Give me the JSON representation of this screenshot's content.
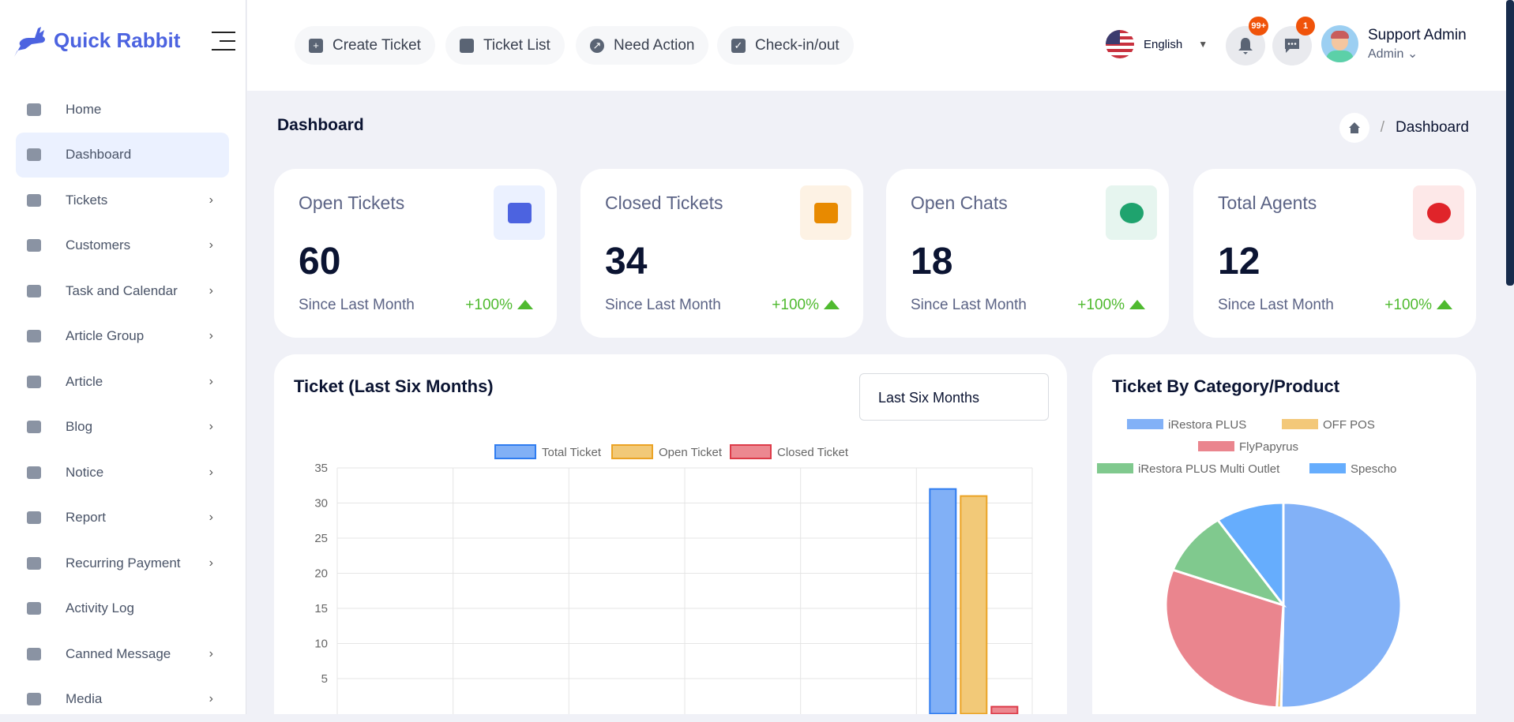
{
  "brand": {
    "name": "Quick Rabbit",
    "color": "#4c63e0"
  },
  "sidebar": {
    "items": [
      {
        "label": "Home",
        "icon": "home-icon",
        "chevron": false,
        "active": false
      },
      {
        "label": "Dashboard",
        "icon": "dashboard-icon",
        "chevron": false,
        "active": true
      },
      {
        "label": "Tickets",
        "icon": "ticket-icon",
        "chevron": true
      },
      {
        "label": "Customers",
        "icon": "user-icon",
        "chevron": true
      },
      {
        "label": "Task and Calendar",
        "icon": "calendar-icon",
        "chevron": true
      },
      {
        "label": "Article Group",
        "icon": "document-icon",
        "chevron": true
      },
      {
        "label": "Article",
        "icon": "bookmark-icon",
        "chevron": true
      },
      {
        "label": "Blog",
        "icon": "list-icon",
        "chevron": true
      },
      {
        "label": "Notice",
        "icon": "bell-icon",
        "chevron": true
      },
      {
        "label": "Report",
        "icon": "report-icon",
        "chevron": true
      },
      {
        "label": "Recurring Payment",
        "icon": "card-icon",
        "chevron": true
      },
      {
        "label": "Activity Log",
        "icon": "trend-icon",
        "chevron": false
      },
      {
        "label": "Canned Message",
        "icon": "message-icon",
        "chevron": true
      },
      {
        "label": "Media",
        "icon": "image-icon",
        "chevron": true
      }
    ]
  },
  "toolbar": {
    "create_ticket": "Create Ticket",
    "ticket_list": "Ticket List",
    "need_action": "Need Action",
    "check_in_out": "Check-in/out"
  },
  "header": {
    "language": "English",
    "notifications_badge": "99+",
    "messages_badge": "1",
    "user_name": "Support Admin",
    "user_role": "Admin"
  },
  "page": {
    "title": "Dashboard",
    "breadcrumb": "Dashboard"
  },
  "stats": [
    {
      "label": "Open Tickets",
      "value": "60",
      "since": "Since Last Month",
      "change": "+100%",
      "icon": "ticket-icon",
      "color": "#4c63e0",
      "bg": "#ebf1ff"
    },
    {
      "label": "Closed Tickets",
      "value": "34",
      "since": "Since Last Month",
      "change": "+100%",
      "icon": "ticket-cancel-icon",
      "color": "#e88a00",
      "bg": "#fdf2e4"
    },
    {
      "label": "Open Chats",
      "value": "18",
      "since": "Since Last Month",
      "change": "+100%",
      "icon": "chat-icon",
      "color": "#1fa36e",
      "bg": "#e6f5ef"
    },
    {
      "label": "Total Agents",
      "value": "12",
      "since": "Since Last Month",
      "change": "+100%",
      "icon": "user-icon",
      "color": "#e0242a",
      "bg": "#fde8e8"
    }
  ],
  "chart_data": [
    {
      "type": "bar",
      "title": "Ticket (Last Six Months)",
      "filter": "Last Six Months",
      "categories": [
        "",
        "",
        "",
        "",
        "",
        ""
      ],
      "yticks": [
        "35",
        "30",
        "25",
        "20",
        "15",
        "10",
        "5"
      ],
      "ylim": [
        0,
        35
      ],
      "grid": true,
      "legend": "top",
      "series": [
        {
          "name": "Total Ticket",
          "values": [
            0,
            0,
            0,
            0,
            0,
            32
          ],
          "fill": "#81b0f6",
          "stroke": "#2f7cf0"
        },
        {
          "name": "Open Ticket",
          "values": [
            0,
            0,
            0,
            0,
            0,
            31
          ],
          "fill": "#f2c978",
          "stroke": "#eba325"
        },
        {
          "name": "Closed Ticket",
          "values": [
            0,
            0,
            0,
            0,
            0,
            1
          ],
          "fill": "#ec8890",
          "stroke": "#dd3b49"
        }
      ]
    },
    {
      "type": "pie",
      "title": "Ticket By Category/Product",
      "legend": "top",
      "labels": [
        "iRestora PLUS",
        "OFF POS",
        "FlyPapyrus",
        "iRestora PLUS Multi Outlet",
        "Spescho"
      ],
      "values": [
        50.3,
        0.6,
        29.7,
        10,
        9.4
      ],
      "colors": [
        "#82b1f7",
        "#f3c879",
        "#ea858e",
        "#80c98e",
        "#66adfd"
      ]
    }
  ]
}
